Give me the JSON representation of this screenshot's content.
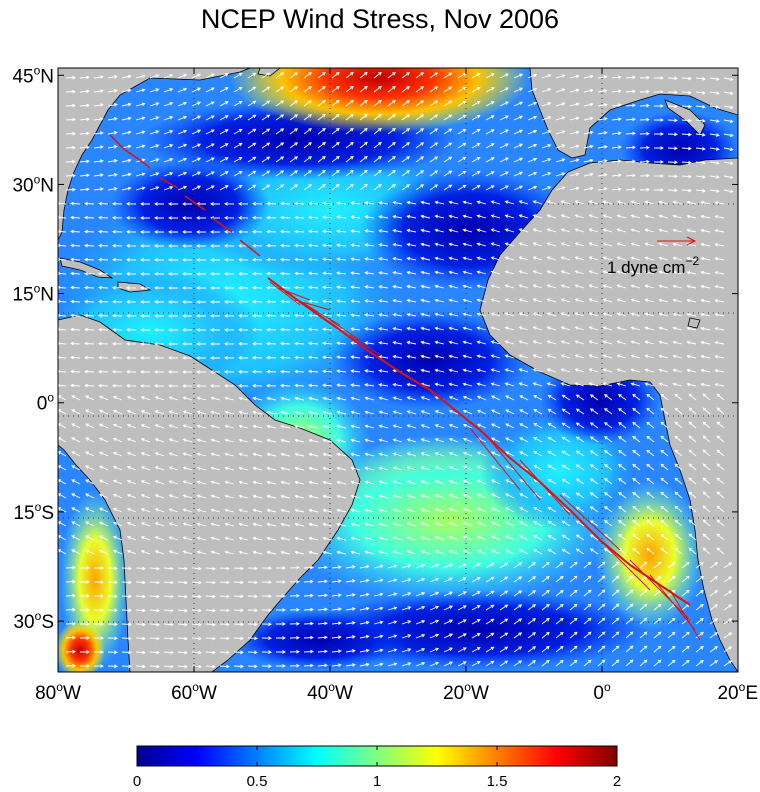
{
  "title": "NCEP Wind Stress, Nov 2006",
  "map": {
    "lon_range": [
      -80,
      20
    ],
    "lat_range": [
      -37,
      46
    ],
    "lat_ticks": [
      {
        "value": 45,
        "label": "45",
        "hemi": "N"
      },
      {
        "value": 30,
        "label": "30",
        "hemi": "N"
      },
      {
        "value": 15,
        "label": "15",
        "hemi": "N"
      },
      {
        "value": 0,
        "label": "0",
        "hemi": ""
      },
      {
        "value": -15,
        "label": "15",
        "hemi": "S"
      },
      {
        "value": -30,
        "label": "30",
        "hemi": "S"
      }
    ],
    "lon_ticks": [
      {
        "value": -80,
        "label": "80",
        "hemi": "W"
      },
      {
        "value": -60,
        "label": "60",
        "hemi": "W"
      },
      {
        "value": -40,
        "label": "40",
        "hemi": "W"
      },
      {
        "value": -20,
        "label": "20",
        "hemi": "W"
      },
      {
        "value": 0,
        "label": "0",
        "hemi": ""
      },
      {
        "value": 20,
        "label": "20",
        "hemi": "E"
      }
    ],
    "grid": "dotted",
    "land_color": "#bebebe",
    "ship_track_color": "#e01010",
    "vector_color": "#ffffff"
  },
  "scale_arrow": {
    "label_main": "1 dyne cm",
    "label_exp": "−2",
    "color": "#e01010"
  },
  "colorbar": {
    "min": 0,
    "max": 2,
    "ticks": [
      "0",
      "0.5",
      "1",
      "1.5",
      "2"
    ],
    "colormap": "jet"
  }
}
